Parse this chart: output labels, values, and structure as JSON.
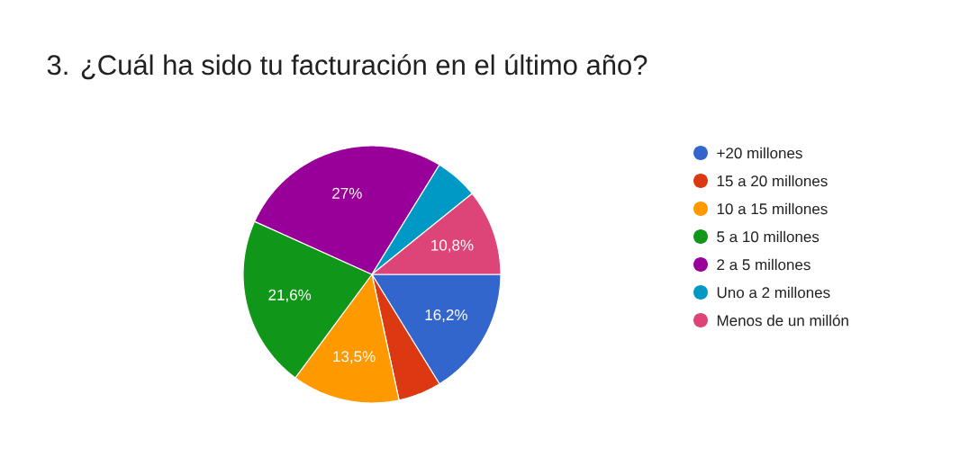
{
  "chart_data": {
    "type": "pie",
    "title": "3. ¿Cuál ha sido tu facturación en el último año?",
    "categories": [
      "+20 millones",
      "15 a 20 millones",
      "10 a 15 millones",
      "5 a 10 millones",
      "2 a 5 millones",
      "Uno a 2 millones",
      "Menos de un millón"
    ],
    "values": [
      16.2,
      5.4,
      13.5,
      21.6,
      27,
      5.4,
      10.8
    ],
    "value_labels": [
      "16,2%",
      null,
      "13,5%",
      "21,6%",
      "27%",
      null,
      "10,8%"
    ],
    "colors": [
      "#3366cc",
      "#dc3912",
      "#ff9900",
      "#109618",
      "#990099",
      "#0099c6",
      "#dd4477"
    ],
    "legend": "right"
  }
}
